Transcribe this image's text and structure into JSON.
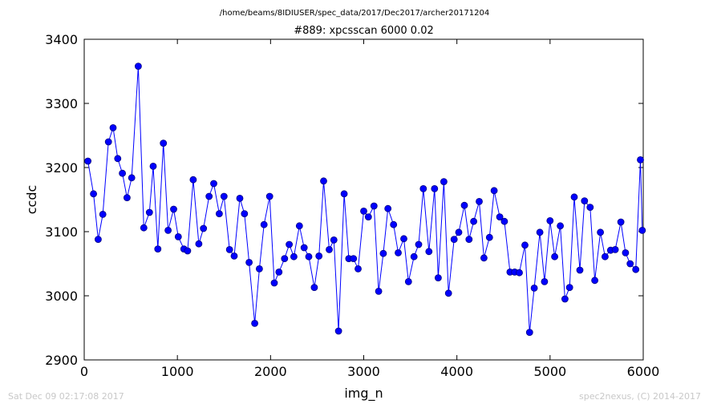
{
  "header": {
    "path": "/home/beams/8IDIUSER/spec_data/2017/Dec2017/archer20171204"
  },
  "footer": {
    "timestamp": "Sat Dec 09 02:17:08 2017",
    "credit": "spec2nexus, (C) 2014-2017"
  },
  "colors": {
    "series": "#0000ff",
    "marker_fill": "#0000ff",
    "marker_edge": "#000080",
    "axes": "#000000",
    "footer_text": "#c8c8c8"
  },
  "chart_data": {
    "type": "line",
    "title": "#889: xpcsscan 6000 0.02",
    "xlabel": "img_n",
    "ylabel": "ccdc",
    "xlim": [
      0,
      6000
    ],
    "ylim": [
      2900,
      3400
    ],
    "xticks": [
      0,
      1000,
      2000,
      3000,
      4000,
      5000,
      6000
    ],
    "yticks": [
      2900,
      3000,
      3100,
      3200,
      3300,
      3400
    ],
    "grid": false,
    "legend": "none",
    "series": [
      {
        "x": [
          40,
          100,
          150,
          200,
          260,
          310,
          360,
          410,
          460,
          510,
          580,
          640,
          700,
          740,
          790,
          850,
          900,
          960,
          1010,
          1070,
          1110,
          1170,
          1230,
          1280,
          1340,
          1390,
          1450,
          1500,
          1560,
          1610,
          1670,
          1720,
          1770,
          1830,
          1880,
          1930,
          1990,
          2040,
          2090,
          2150,
          2200,
          2250,
          2310,
          2360,
          2410,
          2470,
          2520,
          2570,
          2630,
          2680,
          2730,
          2790,
          2840,
          2890,
          2940,
          3000,
          3050,
          3110,
          3160,
          3210,
          3260,
          3320,
          3370,
          3430,
          3480,
          3540,
          3590,
          3640,
          3700,
          3760,
          3800,
          3860,
          3910,
          3970,
          4020,
          4080,
          4130,
          4180,
          4240,
          4290,
          4350,
          4400,
          4460,
          4510,
          4570,
          4620,
          4670,
          4730,
          4780,
          4830,
          4890,
          4940,
          5000,
          5050,
          5110,
          5160,
          5210,
          5260,
          5320,
          5370,
          5430,
          5480,
          5540,
          5590,
          5650,
          5700,
          5760,
          5810,
          5860,
          5920,
          5970,
          5990
        ],
        "y": [
          3210,
          3159,
          3088,
          3127,
          3240,
          3262,
          3214,
          3191,
          3153,
          3184,
          3358,
          3106,
          3130,
          3202,
          3073,
          3238,
          3102,
          3135,
          3092,
          3073,
          3070,
          3181,
          3081,
          3105,
          3155,
          3175,
          3128,
          3155,
          3072,
          3062,
          3152,
          3128,
          3052,
          2957,
          3042,
          3111,
          3155,
          3020,
          3037,
          3058,
          3080,
          3061,
          3109,
          3075,
          3061,
          3013,
          3062,
          3179,
          3072,
          3087,
          2945,
          3159,
          3058,
          3058,
          3042,
          3132,
          3123,
          3140,
          3007,
          3066,
          3136,
          3111,
          3067,
          3089,
          3022,
          3061,
          3080,
          3167,
          3069,
          3167,
          3028,
          3178,
          3004,
          3088,
          3099,
          3141,
          3088,
          3116,
          3147,
          3059,
          3091,
          3164,
          3123,
          3116,
          3037,
          3037,
          3036,
          3079,
          2943,
          3012,
          3099,
          3022,
          3117,
          3061,
          3109,
          2995,
          3013,
          3154,
          3040,
          3148,
          3138,
          3024,
          3099,
          3061,
          3071,
          3072,
          3115,
          3067,
          3050,
          3041,
          3212,
          3102
        ]
      }
    ]
  }
}
